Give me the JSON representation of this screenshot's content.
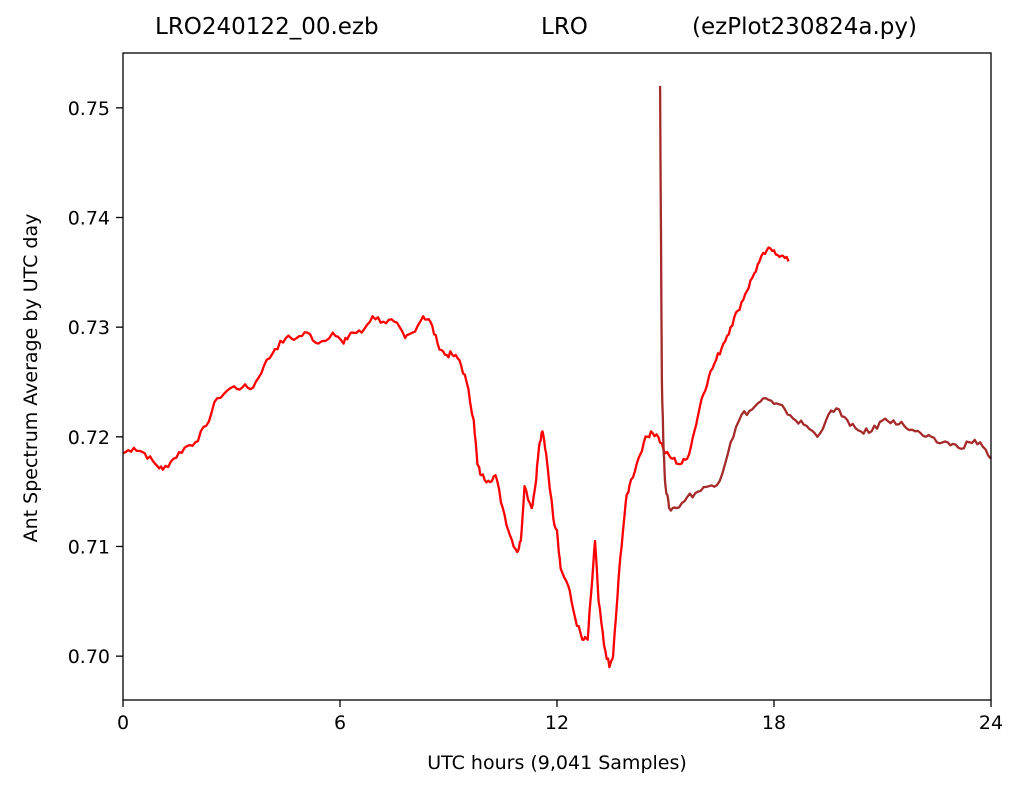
{
  "chart_data": {
    "type": "line",
    "title_left": "LRO240122_00.ezb",
    "title_center": "LRO",
    "title_right": "(ezPlot230824a.py)",
    "xlabel": "UTC hours  (9,041 Samples)",
    "ylabel": "Ant Spectrum Average by UTC day",
    "xlim": [
      0,
      24
    ],
    "ylim": [
      0.696,
      0.755
    ],
    "xticks": [
      0,
      6,
      12,
      18,
      24
    ],
    "xtick_labels": [
      "0",
      "6",
      "12",
      "18",
      "24"
    ],
    "yticks": [
      0.7,
      0.71,
      0.72,
      0.73,
      0.74,
      0.75
    ],
    "ytick_labels": [
      "0.70",
      "0.71",
      "0.72",
      "0.73",
      "0.74",
      "0.75"
    ],
    "grid": false,
    "series": [
      {
        "color": "#ff0000",
        "x": [
          0,
          0.3,
          0.6,
          0.9,
          1.1,
          1.4,
          1.7,
          2.0,
          2.3,
          2.6,
          3.0,
          3.3,
          3.6,
          3.9,
          4.2,
          4.5,
          4.8,
          5.1,
          5.4,
          5.8,
          6.1,
          6.3,
          6.6,
          6.9,
          7.2,
          7.5,
          7.8,
          8.0,
          8.3,
          8.5,
          8.7,
          8.9,
          9.1,
          9.3,
          9.5,
          9.7,
          9.8,
          9.9,
          10.1,
          10.3,
          10.5,
          10.7,
          10.9,
          11.0,
          11.1,
          11.3,
          11.4,
          11.5,
          11.6,
          11.7,
          11.9,
          12.0,
          12.1,
          12.3,
          12.5,
          12.7,
          12.85,
          12.95,
          13.05,
          13.15,
          13.3,
          13.45,
          13.55,
          13.65,
          13.75,
          13.9,
          14.0,
          14.2,
          14.4,
          14.6,
          14.8,
          15.0,
          15.2,
          15.4,
          15.6,
          15.8,
          16.0,
          16.2,
          16.4,
          16.6,
          16.8,
          17.0,
          17.2,
          17.4,
          17.6,
          17.8,
          18.0,
          18.2,
          18.4
        ],
        "y": [
          0.7185,
          0.719,
          0.7185,
          0.7175,
          0.717,
          0.718,
          0.719,
          0.7195,
          0.721,
          0.7235,
          0.7245,
          0.7245,
          0.7245,
          0.7265,
          0.728,
          0.729,
          0.729,
          0.7295,
          0.7285,
          0.7295,
          0.7285,
          0.7295,
          0.7295,
          0.731,
          0.7305,
          0.7305,
          0.729,
          0.7295,
          0.731,
          0.7305,
          0.7285,
          0.7275,
          0.7275,
          0.727,
          0.725,
          0.7215,
          0.7175,
          0.7165,
          0.716,
          0.7165,
          0.7135,
          0.711,
          0.7095,
          0.7105,
          0.7155,
          0.7135,
          0.7155,
          0.719,
          0.7205,
          0.7185,
          0.7125,
          0.7115,
          0.708,
          0.7065,
          0.7035,
          0.7015,
          0.7015,
          0.706,
          0.7105,
          0.705,
          0.701,
          0.699,
          0.7,
          0.7045,
          0.709,
          0.714,
          0.7155,
          0.7175,
          0.7195,
          0.7205,
          0.72,
          0.7185,
          0.718,
          0.7175,
          0.718,
          0.7205,
          0.7235,
          0.7255,
          0.727,
          0.7285,
          0.73,
          0.7315,
          0.733,
          0.7345,
          0.736,
          0.737,
          0.737,
          0.7365,
          0.736
        ]
      },
      {
        "color": "#a52a2a",
        "x": [
          14.85,
          14.9,
          14.95,
          15.0,
          15.1,
          15.3,
          15.6,
          15.9,
          16.2,
          16.5,
          16.8,
          17.1,
          17.4,
          17.7,
          18.0,
          18.3,
          18.6,
          18.9,
          19.2,
          19.5,
          19.8,
          20.1,
          20.4,
          20.7,
          21.0,
          21.3,
          21.6,
          21.9,
          22.2,
          22.5,
          22.8,
          23.1,
          23.4,
          23.7,
          24.0
        ],
        "y": [
          0.752,
          0.725,
          0.7185,
          0.7155,
          0.7135,
          0.7135,
          0.7145,
          0.715,
          0.7155,
          0.716,
          0.7195,
          0.722,
          0.7225,
          0.7235,
          0.723,
          0.7225,
          0.7215,
          0.721,
          0.72,
          0.722,
          0.7225,
          0.721,
          0.7205,
          0.7205,
          0.7215,
          0.7215,
          0.721,
          0.7205,
          0.72,
          0.7195,
          0.7195,
          0.719,
          0.7195,
          0.7195,
          0.718
        ]
      }
    ]
  }
}
